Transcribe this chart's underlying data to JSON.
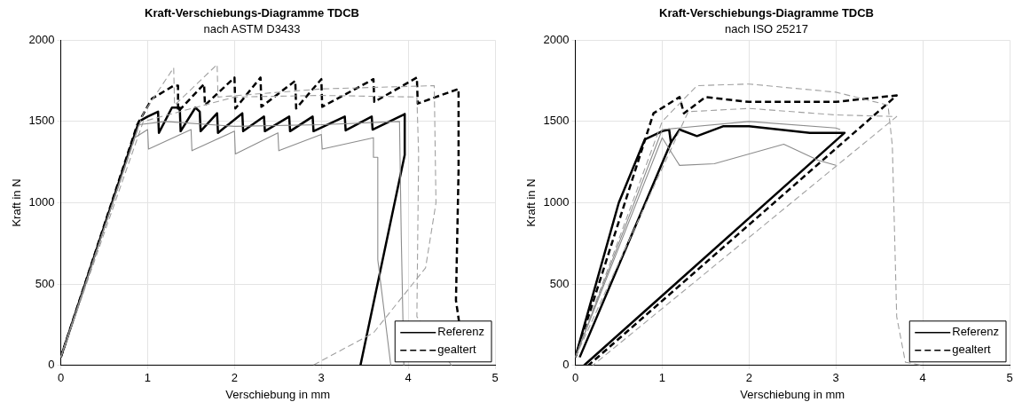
{
  "chart_data": [
    {
      "type": "line",
      "title": "Kraft-Verschiebungs-Diagramme TDCB",
      "subtitle": "nach ASTM D3433",
      "xlabel": "Verschiebung in mm",
      "ylabel": "Kraft in N",
      "xlim": [
        0,
        5
      ],
      "ylim": [
        0,
        2000
      ],
      "xticks": [
        0,
        1,
        2,
        3,
        4,
        5
      ],
      "yticks": [
        0,
        500,
        1000,
        1500,
        2000
      ],
      "grid": true,
      "legend": "bottom right",
      "marker": "none",
      "series": [
        {
          "color": "#8c8c8c",
          "line_style": "solid",
          "x": [
            0,
            0.85,
            1.0,
            1.01,
            1.5,
            1.51,
            2.0,
            2.01,
            2.5,
            2.51,
            3.0,
            3.01,
            3.6,
            3.6,
            3.65,
            3.65,
            3.8
          ],
          "values": [
            50,
            1400,
            1450,
            1330,
            1450,
            1320,
            1440,
            1300,
            1430,
            1320,
            1420,
            1330,
            1400,
            1280,
            1280,
            650,
            0
          ]
        },
        {
          "color": "#8c8c8c",
          "line_style": "solid",
          "x": [
            0,
            0.9,
            1.2,
            2,
            3,
            3.9,
            3.92,
            3.95
          ],
          "values": [
            50,
            1480,
            1500,
            1470,
            1480,
            1500,
            800,
            0
          ]
        },
        {
          "color": "#a0a0a0",
          "line_style": "dashed",
          "x": [
            0,
            0.95,
            1.3,
            1.31,
            1.8,
            1.81,
            3,
            4.3,
            4.32,
            4.2,
            3.6,
            2.9
          ],
          "values": [
            50,
            1550,
            1830,
            1600,
            1850,
            1650,
            1700,
            1720,
            1000,
            600,
            200,
            0
          ]
        },
        {
          "color": "#a0a0a0",
          "line_style": "dashed",
          "x": [
            0,
            0.95,
            2,
            3,
            4.1,
            4.12,
            4.1,
            4.5
          ],
          "values": [
            50,
            1500,
            1650,
            1660,
            1650,
            1300,
            300,
            0
          ]
        },
        {
          "name": "Referenz",
          "color": "#000000",
          "line_style": "solid",
          "x": [
            0,
            0.9,
            1.0,
            1.12,
            1.13,
            1.28,
            1.37,
            1.38,
            1.55,
            1.6,
            1.61,
            1.8,
            1.81,
            2.09,
            2.1,
            2.34,
            2.35,
            2.63,
            2.64,
            2.9,
            2.91,
            3.27,
            3.28,
            3.58,
            3.59,
            3.96,
            3.96,
            3.45
          ],
          "values": [
            50,
            1500,
            1530,
            1560,
            1430,
            1585,
            1585,
            1440,
            1585,
            1560,
            1440,
            1550,
            1430,
            1550,
            1440,
            1530,
            1440,
            1530,
            1440,
            1530,
            1440,
            1530,
            1445,
            1530,
            1450,
            1545,
            1295,
            0
          ]
        },
        {
          "name": "gealtert",
          "color": "#000000",
          "line_style": "dashed",
          "x": [
            0,
            0.88,
            1.05,
            1.3,
            1.35,
            1.35,
            1.65,
            1.66,
            2.0,
            2.01,
            2.3,
            2.31,
            2.7,
            2.71,
            3.0,
            3.01,
            3.6,
            3.61,
            4.1,
            4.11,
            4.58,
            4.58,
            4.55,
            4.65
          ],
          "values": [
            50,
            1480,
            1640,
            1720,
            1720,
            1560,
            1730,
            1600,
            1770,
            1580,
            1770,
            1590,
            1750,
            1580,
            1760,
            1590,
            1760,
            1620,
            1770,
            1610,
            1700,
            1200,
            400,
            30
          ]
        }
      ]
    },
    {
      "type": "line",
      "title": "Kraft-Verschiebungs-Diagramme TDCB",
      "subtitle": "nach ISO 25217",
      "xlabel": "Verschiebung in mm",
      "ylabel": "Kraft in N",
      "xlim": [
        0,
        5
      ],
      "ylim": [
        0,
        2000
      ],
      "xticks": [
        0,
        1,
        2,
        3,
        4,
        5
      ],
      "yticks": [
        0,
        500,
        1000,
        1500,
        2000
      ],
      "grid": true,
      "legend": "bottom right",
      "marker": "none",
      "series": [
        {
          "color": "#8c8c8c",
          "line_style": "solid",
          "x": [
            0,
            1.0,
            1.2,
            1.6,
            2.4,
            2.8,
            3.0
          ],
          "values": [
            50,
            1400,
            1230,
            1240,
            1360,
            1260,
            1230
          ]
        },
        {
          "color": "#8c8c8c",
          "line_style": "solid",
          "x": [
            0,
            1.0,
            2,
            3,
            3.05
          ],
          "values": [
            50,
            1450,
            1500,
            1460,
            1450
          ]
        },
        {
          "color": "#a0a0a0",
          "line_style": "dashed",
          "x": [
            0,
            1.0,
            1.4,
            2,
            3,
            3.6,
            3.65,
            3.7,
            3.8,
            4.0
          ],
          "values": [
            50,
            1500,
            1720,
            1730,
            1680,
            1600,
            1350,
            300,
            20,
            0
          ]
        },
        {
          "color": "#a0a0a0",
          "line_style": "dashed",
          "x": [
            0,
            1.3,
            2,
            3,
            3.7,
            0.2
          ],
          "values": [
            50,
            1560,
            1580,
            1540,
            1530,
            0
          ]
        },
        {
          "name": "Referenz",
          "color": "#000000",
          "line_style": "solid",
          "x": [
            0,
            0.5,
            0.8,
            1.0,
            1.08,
            1.1,
            0.05
          ],
          "values": [
            50,
            1000,
            1390,
            1440,
            1450,
            1370,
            50
          ]
        },
        {
          "color": "#000000",
          "line_style": "solid",
          "x": [
            1.1,
            1.2,
            1.4,
            1.7,
            2.0,
            2.7,
            3.1,
            0.1
          ],
          "values": [
            1370,
            1450,
            1410,
            1470,
            1470,
            1430,
            1430,
            0
          ]
        },
        {
          "name": "gealtert",
          "color": "#000000",
          "line_style": "dashed",
          "x": [
            0,
            0.9,
            1.2,
            1.25,
            1.5,
            2,
            3,
            3.7,
            0.15
          ],
          "values": [
            50,
            1550,
            1650,
            1550,
            1650,
            1620,
            1620,
            1660,
            0
          ]
        }
      ]
    }
  ]
}
